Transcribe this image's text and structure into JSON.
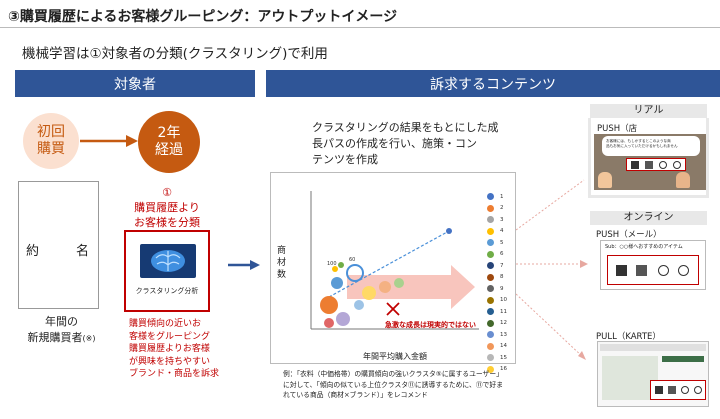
{
  "title": "③購買履歴によるお客様グルーピング：アウトプットイメージ",
  "subtitle": "機械学習は①対象者の分類(クラスタリング)で利用",
  "bars": {
    "left": "対象者",
    "right": "訴求するコンテンツ"
  },
  "stages": {
    "first": [
      "初回",
      "購買"
    ],
    "second": [
      "2年",
      "経過"
    ]
  },
  "form": {
    "left": "約",
    "right": "名"
  },
  "new_buyers": {
    "line1": "年間の",
    "line2": "新規購買者",
    "note": "(※)"
  },
  "classify": [
    "①",
    "購買履歴より",
    "お客様を分類"
  ],
  "ai_label": "クラスタリング分析",
  "grouping_desc": [
    "購買傾向の近いお",
    "客様をグルーピング",
    "購買履歴よりお客様",
    "が興味を持ちやすい",
    "ブランド・商品を訴求"
  ],
  "chart": {
    "heading": [
      "クラスタリングの結果をもとにした成",
      "長パスの作成を行い、施策・コン",
      "テンツを作成"
    ],
    "ylabel": [
      "商",
      "材",
      "数"
    ],
    "xlabel": "年間平均購入金額",
    "annotation": "急激な成長は現実的ではない",
    "point_labels": [
      "100",
      "60"
    ]
  },
  "chart_data": {
    "type": "scatter",
    "xlabel": "年間平均購入金額",
    "ylabel": "商材数",
    "legend": [
      "1",
      "2",
      "3",
      "4",
      "5",
      "6",
      "7",
      "8",
      "9",
      "10",
      "11",
      "12",
      "13",
      "14",
      "15",
      "16"
    ],
    "legend_colors": [
      "#4472c4",
      "#ed7d31",
      "#a5a5a5",
      "#ffc000",
      "#5b9bd5",
      "#70ad47",
      "#264478",
      "#9e480e",
      "#636363",
      "#997300",
      "#255e91",
      "#43682b",
      "#698ed0",
      "#f1975a",
      "#b7b7b7",
      "#ffcd33"
    ]
  },
  "example_text": [
    "例：「衣料（中価格帯）の購買傾向の強いクラスタ⑤に属するユーザー」",
    "に対して、「傾向の似ている上位クラスタ⑪に誘導するために、⑪で好ま",
    "れている商品（商材×ブランド）」をレコメンド"
  ],
  "real": {
    "header": "リアル",
    "push_label": "PUSH（店",
    "bubble": [
      "お客様には、もしかするとこのような商",
      "品もお気に入っていただけるかもしれません"
    ]
  },
  "online": {
    "header": "オンライン",
    "push_mail": "PUSH（メール）",
    "mail_subject": "Sub：○○様へおすすめのアイテム",
    "pull_label": "PULL（KARTE）"
  },
  "colors": {
    "navy": "#2f5597",
    "accent": "#c55a11",
    "red": "#c00000",
    "arrow": "#e7a8a0"
  }
}
